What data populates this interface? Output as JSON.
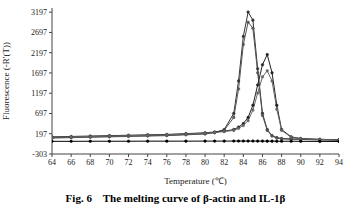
{
  "chart_data": {
    "type": "line",
    "title": "Fig. 6    The melting curve of β-actin and IL-1β",
    "x_label": "Temperature (℃)",
    "y_label": "Fluorescence (-R'(T))",
    "x": [
      64,
      66,
      68,
      70,
      72,
      74,
      76,
      78,
      80,
      81,
      82,
      83,
      83.5,
      84,
      84.5,
      85,
      85.5,
      86,
      86.5,
      87,
      87.5,
      88,
      89,
      90,
      92,
      94
    ],
    "series": [
      {
        "color": "#333333",
        "marker": "circle",
        "values": [
          100,
          110,
          120,
          130,
          140,
          150,
          160,
          180,
          200,
          230,
          300,
          700,
          1500,
          2600,
          3200,
          3000,
          1800,
          700,
          300,
          150,
          100,
          80,
          70,
          60,
          50,
          40
        ]
      },
      {
        "color": "#555555",
        "marker": "circle",
        "values": [
          90,
          100,
          110,
          120,
          130,
          140,
          150,
          170,
          190,
          220,
          280,
          600,
          1300,
          2400,
          2950,
          2800,
          1700,
          650,
          280,
          140,
          90,
          70,
          60,
          55,
          45,
          40
        ]
      },
      {
        "color": "#222222",
        "marker": "circle",
        "values": [
          120,
          130,
          140,
          150,
          160,
          170,
          180,
          200,
          220,
          240,
          260,
          300,
          360,
          450,
          600,
          900,
          1400,
          1900,
          2150,
          1700,
          900,
          300,
          120,
          80,
          60,
          50
        ]
      },
      {
        "color": "#666666",
        "marker": "circle",
        "values": [
          110,
          120,
          130,
          140,
          150,
          160,
          170,
          190,
          210,
          230,
          250,
          280,
          330,
          400,
          520,
          780,
          1200,
          1600,
          1750,
          1500,
          800,
          280,
          110,
          70,
          55,
          45
        ]
      },
      {
        "color": "#000000",
        "marker": "circle",
        "values": [
          10,
          10,
          12,
          12,
          12,
          14,
          14,
          14,
          15,
          15,
          15,
          16,
          16,
          16,
          16,
          16,
          15,
          15,
          14,
          14,
          13,
          12,
          12,
          10,
          8,
          6
        ]
      }
    ],
    "xlim": [
      64,
      94
    ],
    "xticks": [
      64,
      66,
      68,
      70,
      72,
      74,
      76,
      78,
      80,
      82,
      84,
      86,
      88,
      90,
      92,
      94
    ],
    "ylim": [
      -303,
      3300
    ],
    "yticks": [
      -303,
      197,
      697,
      1197,
      1697,
      2197,
      2697,
      3197
    ],
    "grid": false
  }
}
